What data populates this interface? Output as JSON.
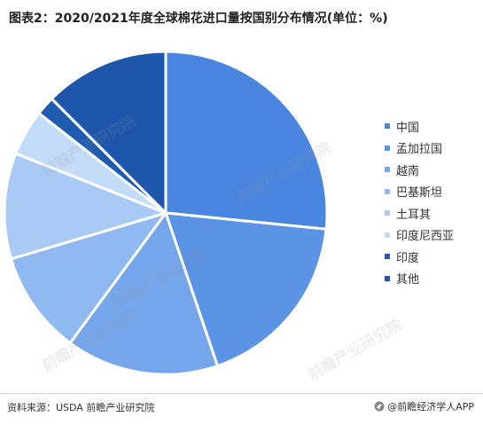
{
  "header": {
    "title": "图表2：2020/2021年度全球棉花进口量按国别分布情况(单位：%)"
  },
  "chart_data": {
    "type": "pie",
    "title": "图表2：2020/2021年度全球棉花进口量按国别分布情况(单位：%)",
    "categories": [
      "中国",
      "孟加拉国",
      "越南",
      "巴基斯坦",
      "土耳其",
      "印度尼西亚",
      "印度",
      "其他"
    ],
    "values": [
      26.6,
      18.2,
      15.3,
      10.3,
      10.6,
      4.6,
      1.9,
      12.5
    ],
    "colors": [
      "#4a86e0",
      "#5b93e5",
      "#75a6ec",
      "#90b9f1",
      "#a9caf5",
      "#c3dcf8",
      "#1f5cb0",
      "#1d56ab"
    ],
    "legend_position": "right"
  },
  "footer": {
    "source": "资料来源：USDA 前瞻产业研究院",
    "brand": "@前瞻经济学人APP"
  },
  "watermark": {
    "text": "前瞻产业研究院"
  },
  "icons": {
    "brand_logo": "qianzhan-logo-icon"
  }
}
